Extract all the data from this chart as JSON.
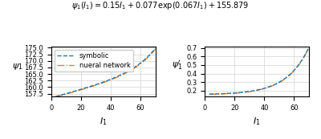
{
  "title": "$\\psi_1(I_1) = 0.15I_1 + 0.077\\exp(0.067I_1) + 155.879$",
  "x_min": 3,
  "x_max": 70,
  "left_ylabel": "$\\psi_1$",
  "right_ylabel": "$\\psi_1'$",
  "xlabel": "$I_1$",
  "symbolic_color": "#1f77b4",
  "neural_color": "#ff7f0e",
  "legend_labels": [
    "symbolic",
    "nueral network"
  ],
  "left_ylim": [
    156.5,
    175.5
  ],
  "right_ylim": [
    0.13,
    0.72
  ],
  "left_yticks": [
    157.5,
    160.0,
    162.5,
    165.0,
    167.5,
    170.0,
    172.5,
    175.0
  ],
  "right_yticks": [
    0.2,
    0.3,
    0.4,
    0.5,
    0.6,
    0.7
  ],
  "xticks": [
    0,
    20,
    40,
    60
  ],
  "a": 0.15,
  "b": 0.077,
  "c": 0.067,
  "d": 155.879
}
